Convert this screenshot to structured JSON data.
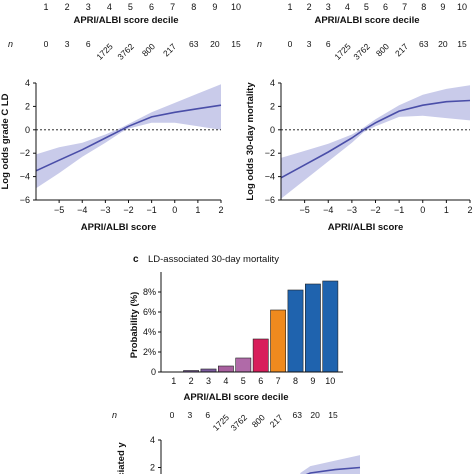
{
  "figure": {
    "deciles": [
      "1",
      "2",
      "3",
      "4",
      "5",
      "6",
      "7",
      "8",
      "9",
      "10"
    ],
    "decile_axis_label": "APRI/ALBI score decile",
    "n_label": "n",
    "n_values": [
      "0",
      "3",
      "6",
      "1725",
      "3762",
      "800",
      "217",
      "63",
      "20",
      "15"
    ]
  },
  "panel_c_letter": "c",
  "chart_data": [
    {
      "id": "a",
      "type": "line",
      "xlabel": "APRI/ALBI score",
      "ylabel": "Log odds grade C LD",
      "xlim": [
        -6,
        2
      ],
      "ylim": [
        -6,
        4
      ],
      "xticks": [
        -5,
        -4,
        -3,
        -2,
        -1,
        0,
        1,
        2
      ],
      "yticks": [
        -6,
        -4,
        -2,
        0,
        2,
        4
      ],
      "tick_labels_x": [
        "−5",
        "−4",
        "−3",
        "−2",
        "−1",
        "0",
        "1",
        "2"
      ],
      "tick_labels_y": [
        "−6",
        "−4",
        "−2",
        "0",
        "2",
        "4"
      ],
      "reference_line_y": 0,
      "colors": {
        "line": "#4a4ea8",
        "band": "#c9cbea"
      },
      "x": [
        -6,
        -5,
        -4,
        -3,
        -2.3,
        -2,
        -1,
        0,
        1,
        2
      ],
      "y": [
        -3.5,
        -2.6,
        -1.7,
        -0.7,
        0.0,
        0.3,
        1.1,
        1.5,
        1.8,
        2.1
      ],
      "lower": [
        -5.0,
        -3.7,
        -2.3,
        -1.1,
        -0.2,
        0.1,
        0.6,
        0.6,
        0.3,
        0.0
      ],
      "upper": [
        -2.1,
        -1.5,
        -1.1,
        -0.4,
        0.2,
        0.5,
        1.5,
        2.3,
        3.1,
        3.9
      ]
    },
    {
      "id": "b",
      "type": "line",
      "xlabel": "APRI/ALBI  score",
      "ylabel": "Log odds 30-day mortality",
      "xlim": [
        -6,
        2
      ],
      "ylim": [
        -6,
        4
      ],
      "xticks": [
        -5,
        -4,
        -3,
        -2,
        -1,
        0,
        1,
        2
      ],
      "yticks": [
        -6,
        -4,
        -2,
        0,
        2,
        4
      ],
      "tick_labels_x": [
        "−5",
        "−4",
        "−3",
        "−2",
        "−1",
        "0",
        "1",
        "2"
      ],
      "tick_labels_y": [
        "−6",
        "−4",
        "−2",
        "0",
        "2",
        "4"
      ],
      "reference_line_y": 0,
      "colors": {
        "line": "#4a4ea8",
        "band": "#c9cbea"
      },
      "x": [
        -6,
        -5,
        -4,
        -3,
        -2.5,
        -2,
        -1,
        0,
        1,
        2
      ],
      "y": [
        -4.1,
        -3.0,
        -1.9,
        -0.7,
        0.0,
        0.6,
        1.6,
        2.1,
        2.4,
        2.5
      ],
      "lower": [
        -5.9,
        -4.3,
        -2.7,
        -1.1,
        -0.2,
        0.3,
        1.1,
        1.2,
        1.0,
        0.8
      ],
      "upper": [
        -2.4,
        -1.8,
        -1.2,
        -0.4,
        0.2,
        0.9,
        2.1,
        3.0,
        3.5,
        3.8
      ]
    },
    {
      "id": "c",
      "type": "bar",
      "title": "LD-associated 30-day mortality",
      "xlabel": "APRI/ALBI score decile",
      "ylabel": "Probability (%)",
      "categories": [
        "1",
        "2",
        "3",
        "4",
        "5",
        "6",
        "7",
        "8",
        "9",
        "10"
      ],
      "values": [
        0.0,
        0.15,
        0.3,
        0.6,
        1.4,
        3.3,
        6.2,
        8.2,
        8.8,
        9.1
      ],
      "ylim": [
        0,
        10
      ],
      "yticks": [
        0,
        2,
        4,
        6,
        8
      ],
      "tick_labels_y": [
        "0",
        "2%",
        "4%",
        "6%",
        "8%"
      ],
      "colors": [
        "#9b8ec4",
        "#7b5b9e",
        "#7b5b9e",
        "#a8609f",
        "#b06aa8",
        "#d81e5b",
        "#ef8a1e",
        "#1f63ae",
        "#1f63ae",
        "#1f63ae"
      ]
    },
    {
      "id": "d",
      "type": "line",
      "ylabel": "ciated y",
      "ylim": [
        0,
        4
      ],
      "yticks": [
        2,
        4
      ],
      "tick_labels_y": [
        "2",
        "4"
      ],
      "colors": {
        "line": "#4a4ea8",
        "band": "#c9cbea"
      },
      "x": [
        -0.4,
        0,
        1,
        2
      ],
      "y": [
        1.3,
        1.6,
        1.85,
        2.0
      ],
      "lower": [
        0.9,
        1.2,
        1.1,
        0.9
      ],
      "upper": [
        1.6,
        2.1,
        2.5,
        2.9
      ]
    }
  ]
}
